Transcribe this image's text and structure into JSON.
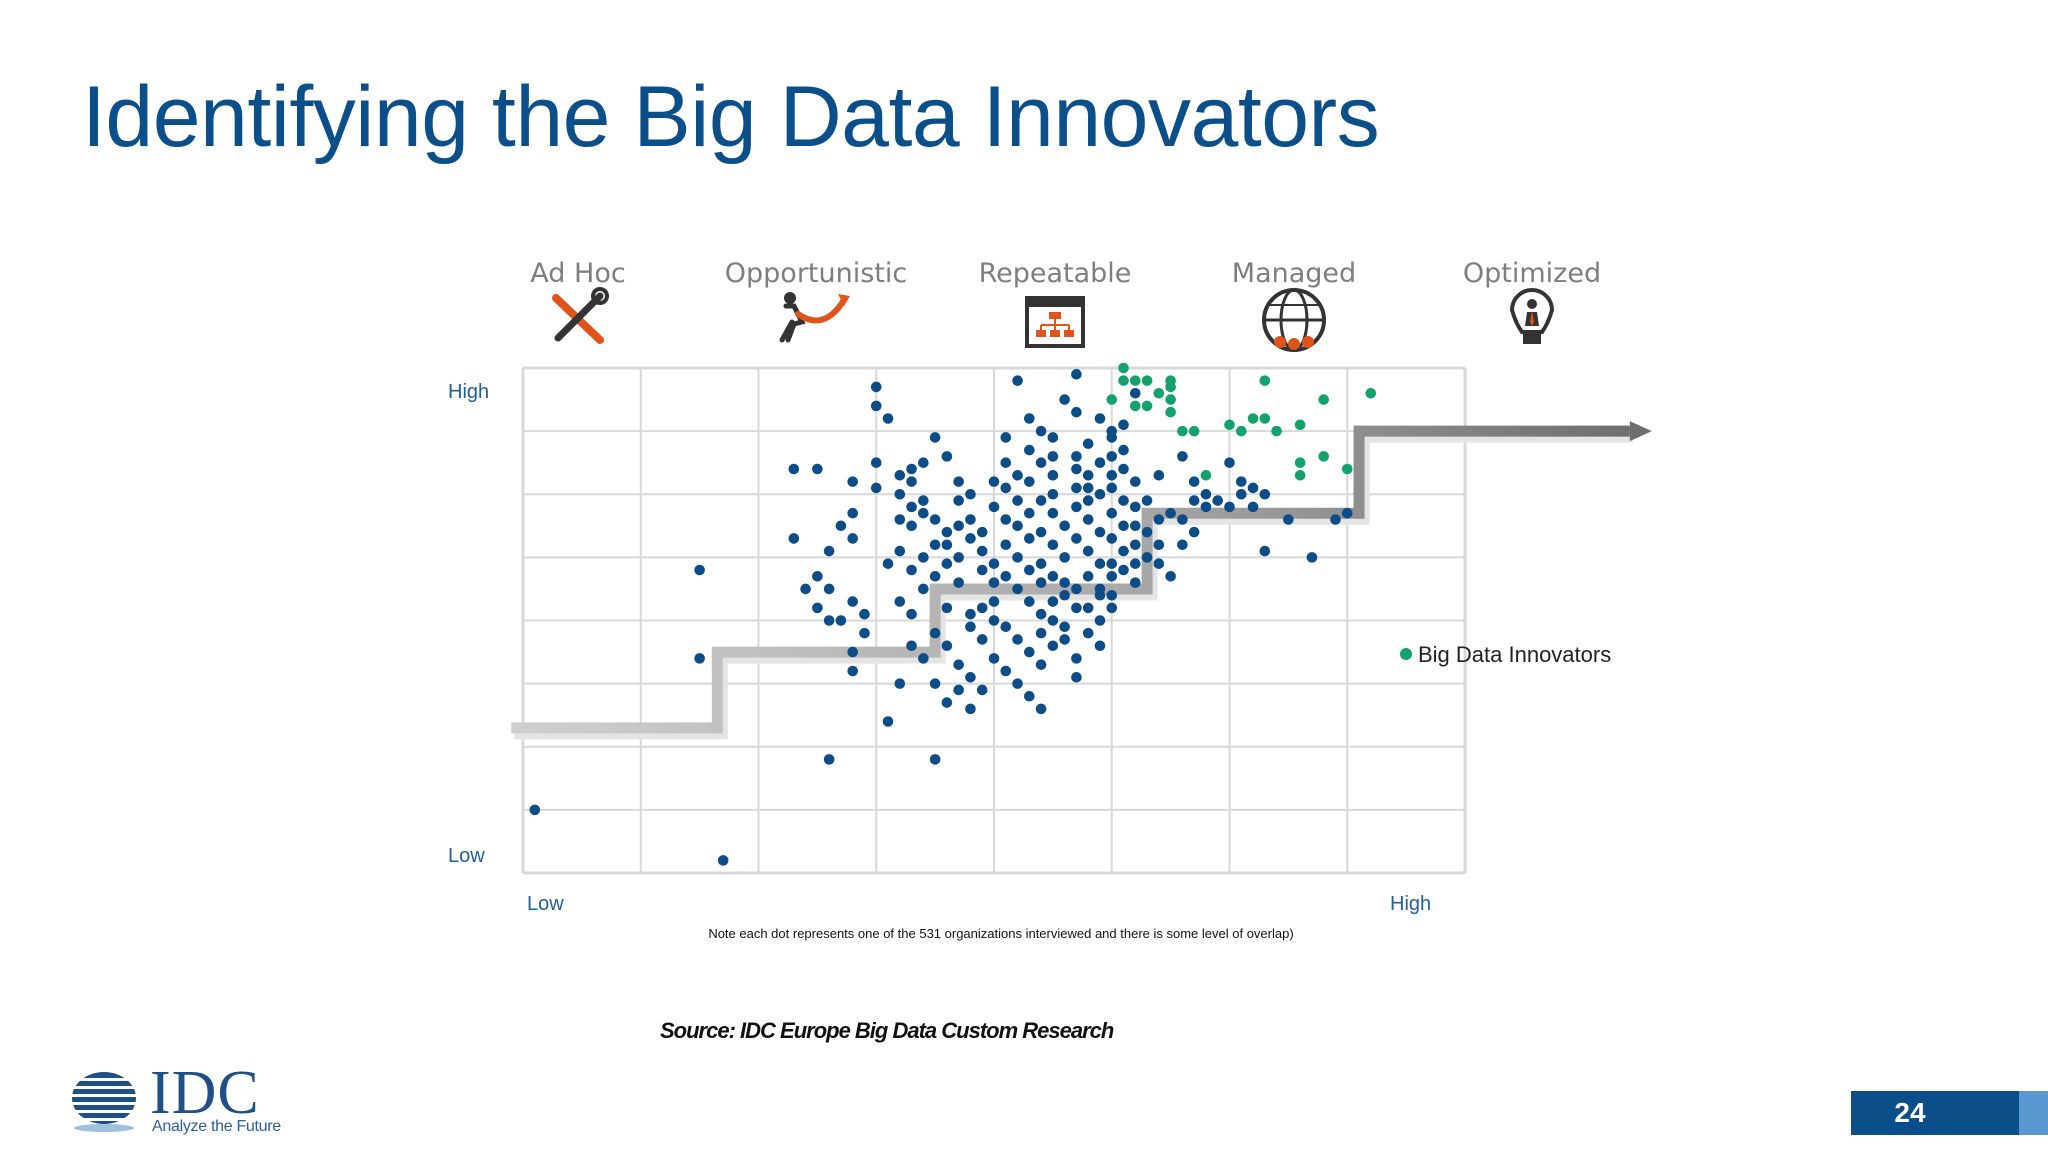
{
  "slide": {
    "title": "Identifying the Big Data Innovators",
    "source": "Source: IDC Europe Big Data Custom Research",
    "page_number": "24",
    "logo_word": "IDC",
    "logo_tagline": "Analyze the Future"
  },
  "colors": {
    "title": "#0b4f8a",
    "dot_regular": "#0c4d87",
    "dot_innovator": "#13a26b",
    "grid": "#d8d8d8",
    "stage_label": "#7e7e7e"
  },
  "icons": [
    "tools-icon",
    "tug-of-war-icon",
    "flowchart-window-icon",
    "globe-network-icon",
    "lightbulb-person-icon"
  ],
  "chart_data": {
    "type": "scatter",
    "stages": [
      "Ad Hoc",
      "Opportunistic",
      "Repeatable",
      "Managed",
      "Optimized"
    ],
    "y_axis": {
      "high_label": "High",
      "low_label": "Low"
    },
    "x_axis": {
      "low_label": "Low",
      "high_label": "High"
    },
    "xlim": [
      0,
      8
    ],
    "ylim": [
      0,
      8
    ],
    "grid": true,
    "legend": {
      "entries": [
        "Big Data Innovators"
      ],
      "placement": "right"
    },
    "note": "Note each dot represents one of the 531 organizations interviewed and there is some level of overlap)",
    "maturity_staircase": [
      [
        -0.1,
        2.3
      ],
      [
        1.65,
        2.3
      ],
      [
        1.65,
        3.5
      ],
      [
        3.5,
        3.5
      ],
      [
        3.5,
        4.5
      ],
      [
        5.3,
        4.5
      ],
      [
        5.3,
        5.7
      ],
      [
        7.1,
        5.7
      ],
      [
        7.1,
        7.0
      ],
      [
        9.4,
        7.0
      ]
    ],
    "series": [
      {
        "name": "Big Data Innovators",
        "points": [
          [
            5.1,
            8.0
          ],
          [
            5.1,
            7.8
          ],
          [
            5.2,
            7.8
          ],
          [
            5.3,
            7.8
          ],
          [
            5.5,
            7.8
          ],
          [
            5.5,
            7.7
          ],
          [
            6.3,
            7.8
          ],
          [
            5.0,
            7.5
          ],
          [
            5.2,
            7.4
          ],
          [
            5.3,
            7.4
          ],
          [
            5.5,
            7.5
          ],
          [
            5.5,
            7.3
          ],
          [
            5.4,
            7.6
          ],
          [
            5.7,
            7.0
          ],
          [
            5.6,
            7.0
          ],
          [
            6.0,
            7.1
          ],
          [
            6.1,
            7.0
          ],
          [
            6.2,
            7.2
          ],
          [
            6.3,
            7.2
          ],
          [
            6.6,
            7.1
          ],
          [
            6.8,
            7.5
          ],
          [
            7.2,
            7.6
          ],
          [
            6.4,
            7.0
          ],
          [
            6.6,
            6.5
          ],
          [
            6.6,
            6.3
          ],
          [
            6.8,
            6.6
          ],
          [
            7.0,
            6.4
          ],
          [
            5.8,
            6.3
          ]
        ]
      },
      {
        "name": "",
        "points": [
          [
            0.1,
            1.0
          ],
          [
            1.7,
            0.2
          ],
          [
            1.5,
            4.8
          ],
          [
            1.5,
            3.4
          ],
          [
            2.3,
            6.4
          ],
          [
            2.5,
            6.4
          ],
          [
            2.3,
            5.3
          ],
          [
            2.8,
            6.2
          ],
          [
            2.8,
            5.7
          ],
          [
            2.8,
            5.3
          ],
          [
            2.7,
            5.5
          ],
          [
            2.6,
            5.1
          ],
          [
            2.5,
            4.7
          ],
          [
            2.4,
            4.5
          ],
          [
            2.6,
            4.5
          ],
          [
            2.5,
            4.2
          ],
          [
            2.6,
            4.0
          ],
          [
            2.7,
            4.0
          ],
          [
            2.8,
            4.3
          ],
          [
            2.9,
            4.1
          ],
          [
            2.9,
            3.8
          ],
          [
            2.8,
            3.5
          ],
          [
            2.8,
            3.2
          ],
          [
            3.2,
            3.0
          ],
          [
            2.6,
            1.8
          ],
          [
            3.5,
            1.8
          ],
          [
            3.1,
            2.4
          ],
          [
            3.0,
            7.7
          ],
          [
            3.0,
            7.4
          ],
          [
            3.1,
            7.2
          ],
          [
            3.0,
            6.5
          ],
          [
            3.0,
            6.1
          ],
          [
            3.2,
            6.3
          ],
          [
            3.3,
            6.4
          ],
          [
            3.4,
            6.5
          ],
          [
            3.3,
            6.2
          ],
          [
            3.2,
            6.0
          ],
          [
            3.3,
            5.8
          ],
          [
            3.4,
            5.9
          ],
          [
            3.2,
            5.6
          ],
          [
            3.3,
            5.5
          ],
          [
            3.4,
            5.7
          ],
          [
            3.5,
            5.6
          ],
          [
            3.6,
            5.4
          ],
          [
            3.5,
            5.2
          ],
          [
            3.4,
            5.0
          ],
          [
            3.2,
            5.1
          ],
          [
            3.1,
            4.9
          ],
          [
            3.3,
            4.8
          ],
          [
            3.5,
            4.7
          ],
          [
            3.6,
            4.9
          ],
          [
            3.7,
            4.6
          ],
          [
            3.4,
            4.5
          ],
          [
            3.2,
            4.3
          ],
          [
            3.3,
            4.1
          ],
          [
            3.6,
            4.2
          ],
          [
            3.8,
            4.1
          ],
          [
            3.5,
            3.8
          ],
          [
            3.3,
            3.6
          ],
          [
            3.4,
            3.4
          ],
          [
            3.6,
            3.6
          ],
          [
            3.8,
            3.9
          ],
          [
            3.9,
            3.7
          ],
          [
            3.7,
            3.3
          ],
          [
            3.5,
            3.0
          ],
          [
            3.7,
            2.9
          ],
          [
            3.8,
            3.1
          ],
          [
            3.6,
            2.7
          ],
          [
            3.8,
            2.6
          ],
          [
            3.9,
            2.9
          ],
          [
            3.5,
            6.9
          ],
          [
            3.6,
            6.6
          ],
          [
            3.7,
            6.2
          ],
          [
            3.7,
            5.9
          ],
          [
            3.8,
            6.0
          ],
          [
            3.8,
            5.6
          ],
          [
            3.8,
            5.3
          ],
          [
            3.9,
            5.4
          ],
          [
            3.9,
            5.1
          ],
          [
            4.0,
            4.9
          ],
          [
            4.0,
            4.6
          ],
          [
            4.0,
            4.3
          ],
          [
            3.9,
            4.2
          ],
          [
            3.9,
            4.8
          ],
          [
            3.7,
            5.0
          ],
          [
            3.6,
            5.2
          ],
          [
            3.7,
            5.5
          ],
          [
            4.1,
            6.9
          ],
          [
            4.1,
            6.5
          ],
          [
            4.2,
            6.3
          ],
          [
            4.0,
            6.2
          ],
          [
            4.1,
            6.1
          ],
          [
            4.2,
            5.9
          ],
          [
            4.0,
            5.8
          ],
          [
            4.1,
            5.6
          ],
          [
            4.2,
            5.5
          ],
          [
            4.3,
            5.3
          ],
          [
            4.1,
            5.2
          ],
          [
            4.2,
            5.0
          ],
          [
            4.3,
            4.8
          ],
          [
            4.1,
            4.7
          ],
          [
            4.2,
            4.5
          ],
          [
            4.3,
            4.3
          ],
          [
            4.0,
            4.0
          ],
          [
            4.1,
            3.9
          ],
          [
            4.2,
            3.7
          ],
          [
            4.3,
            3.5
          ],
          [
            4.0,
            3.4
          ],
          [
            4.1,
            3.2
          ],
          [
            4.2,
            3.0
          ],
          [
            4.4,
            4.6
          ],
          [
            4.4,
            4.1
          ],
          [
            4.2,
            7.8
          ],
          [
            4.3,
            7.2
          ],
          [
            4.4,
            7.0
          ],
          [
            4.5,
            6.9
          ],
          [
            4.3,
            6.7
          ],
          [
            4.4,
            6.5
          ],
          [
            4.5,
            6.3
          ],
          [
            4.3,
            6.2
          ],
          [
            4.5,
            6.0
          ],
          [
            4.4,
            5.9
          ],
          [
            4.5,
            5.7
          ],
          [
            4.3,
            5.7
          ],
          [
            4.6,
            5.5
          ],
          [
            4.4,
            5.4
          ],
          [
            4.5,
            5.2
          ],
          [
            4.6,
            5.0
          ],
          [
            4.4,
            4.9
          ],
          [
            4.5,
            4.7
          ],
          [
            4.6,
            4.4
          ],
          [
            4.5,
            4.3
          ],
          [
            4.5,
            4.0
          ],
          [
            4.4,
            3.8
          ],
          [
            4.6,
            3.7
          ],
          [
            4.4,
            3.3
          ],
          [
            4.3,
            2.8
          ],
          [
            4.4,
            2.6
          ],
          [
            4.5,
            3.6
          ],
          [
            4.7,
            3.4
          ],
          [
            4.7,
            4.2
          ],
          [
            4.6,
            4.6
          ],
          [
            4.6,
            7.5
          ],
          [
            4.7,
            7.3
          ],
          [
            4.7,
            6.6
          ],
          [
            4.8,
            6.8
          ],
          [
            4.8,
            6.3
          ],
          [
            4.7,
            6.1
          ],
          [
            4.8,
            5.9
          ],
          [
            4.9,
            6.0
          ],
          [
            4.7,
            5.8
          ],
          [
            4.8,
            5.6
          ],
          [
            4.9,
            5.4
          ],
          [
            4.7,
            5.3
          ],
          [
            4.8,
            5.1
          ],
          [
            4.9,
            4.9
          ],
          [
            4.8,
            4.7
          ],
          [
            4.7,
            4.5
          ],
          [
            4.9,
            4.4
          ],
          [
            4.8,
            4.2
          ],
          [
            4.9,
            4.0
          ],
          [
            4.8,
            3.8
          ],
          [
            4.6,
            3.9
          ],
          [
            4.7,
            3.1
          ],
          [
            4.9,
            3.6
          ],
          [
            4.7,
            6.4
          ],
          [
            4.5,
            6.6
          ],
          [
            4.7,
            7.9
          ],
          [
            4.9,
            6.5
          ],
          [
            5.0,
            6.9
          ],
          [
            5.0,
            6.6
          ],
          [
            5.1,
            6.4
          ],
          [
            5.0,
            6.1
          ],
          [
            5.1,
            5.9
          ],
          [
            5.0,
            5.7
          ],
          [
            5.1,
            5.5
          ],
          [
            5.0,
            5.3
          ],
          [
            5.1,
            5.1
          ],
          [
            5.0,
            4.9
          ],
          [
            5.0,
            4.7
          ],
          [
            5.0,
            4.4
          ],
          [
            5.0,
            4.2
          ],
          [
            4.9,
            4.5
          ],
          [
            5.1,
            4.8
          ],
          [
            5.2,
            6.2
          ],
          [
            5.2,
            5.8
          ],
          [
            5.2,
            5.5
          ],
          [
            5.2,
            5.2
          ],
          [
            5.2,
            4.9
          ],
          [
            5.2,
            4.6
          ],
          [
            5.4,
            6.3
          ],
          [
            5.3,
            5.9
          ],
          [
            5.4,
            5.6
          ],
          [
            5.3,
            5.4
          ],
          [
            5.4,
            5.2
          ],
          [
            5.3,
            5.0
          ],
          [
            5.4,
            4.9
          ],
          [
            5.5,
            4.7
          ],
          [
            5.6,
            6.6
          ],
          [
            5.7,
            6.2
          ],
          [
            5.8,
            6.0
          ],
          [
            5.6,
            5.6
          ],
          [
            5.5,
            5.7
          ],
          [
            5.7,
            5.4
          ],
          [
            5.6,
            5.2
          ],
          [
            5.8,
            5.8
          ],
          [
            6.0,
            5.8
          ],
          [
            5.7,
            5.9
          ],
          [
            5.9,
            5.9
          ],
          [
            6.1,
            6.0
          ],
          [
            6.2,
            5.8
          ],
          [
            6.3,
            6.0
          ],
          [
            6.0,
            6.5
          ],
          [
            6.1,
            6.2
          ],
          [
            6.2,
            6.1
          ],
          [
            7.0,
            5.7
          ],
          [
            6.5,
            5.6
          ],
          [
            6.9,
            5.6
          ],
          [
            6.3,
            5.1
          ],
          [
            6.7,
            5.0
          ],
          [
            5.2,
            7.6
          ],
          [
            5.0,
            7.0
          ],
          [
            4.9,
            7.2
          ],
          [
            5.1,
            7.1
          ],
          [
            5.0,
            6.3
          ],
          [
            4.8,
            6.1
          ],
          [
            5.1,
            6.7
          ]
        ]
      }
    ]
  }
}
